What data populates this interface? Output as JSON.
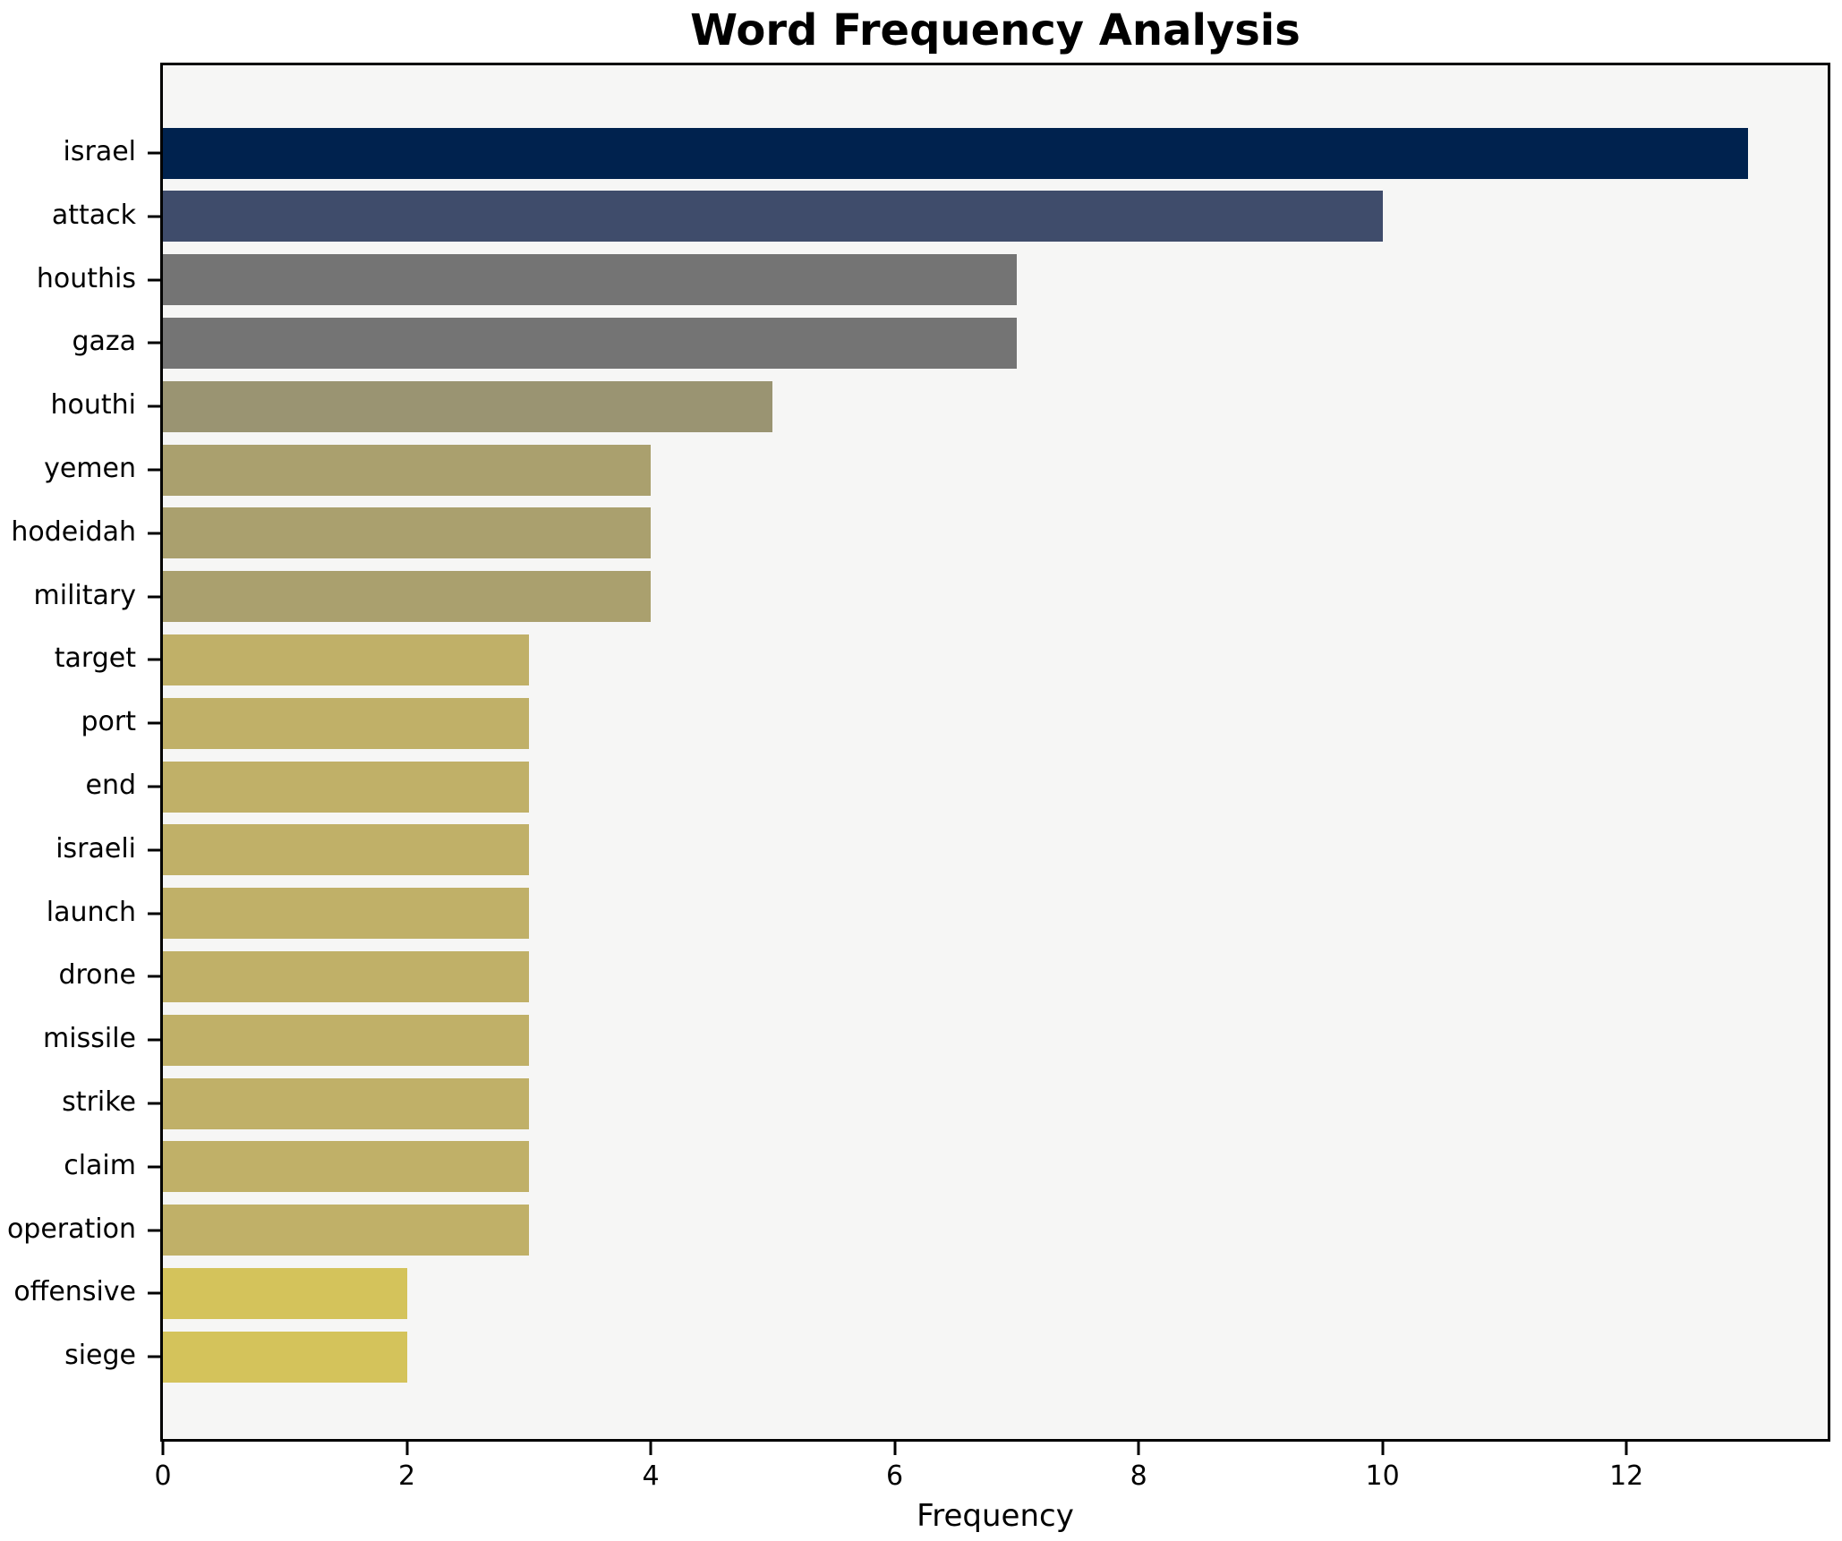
{
  "chart_data": {
    "type": "bar",
    "orientation": "horizontal",
    "title": "Word Frequency Analysis",
    "xlabel": "Frequency",
    "ylabel": "",
    "categories": [
      "israel",
      "attack",
      "houthis",
      "gaza",
      "houthi",
      "yemen",
      "hodeidah",
      "military",
      "target",
      "port",
      "end",
      "israeli",
      "launch",
      "drone",
      "missile",
      "strike",
      "claim",
      "operation",
      "offensive",
      "siege"
    ],
    "values": [
      13,
      10,
      7,
      7,
      5,
      4,
      4,
      4,
      3,
      3,
      3,
      3,
      3,
      3,
      3,
      3,
      3,
      3,
      2,
      2
    ],
    "bar_colors": [
      "#00224e",
      "#3f4c6b",
      "#747474",
      "#747474",
      "#9a9472",
      "#aaa06e",
      "#aaa06e",
      "#aaa06e",
      "#c0b068",
      "#c0b068",
      "#c0b068",
      "#c0b068",
      "#c0b068",
      "#c0b068",
      "#c0b068",
      "#c0b068",
      "#c0b068",
      "#c0b068",
      "#d4c35b",
      "#d4c35b"
    ],
    "xticks": [
      0,
      2,
      4,
      6,
      8,
      10,
      12
    ],
    "xlim": [
      0,
      13.65
    ],
    "grid": false,
    "legend_position": "none",
    "plot_background": "#f6f6f5",
    "figure_background": "#ffffff",
    "axis_color": "#000000"
  }
}
